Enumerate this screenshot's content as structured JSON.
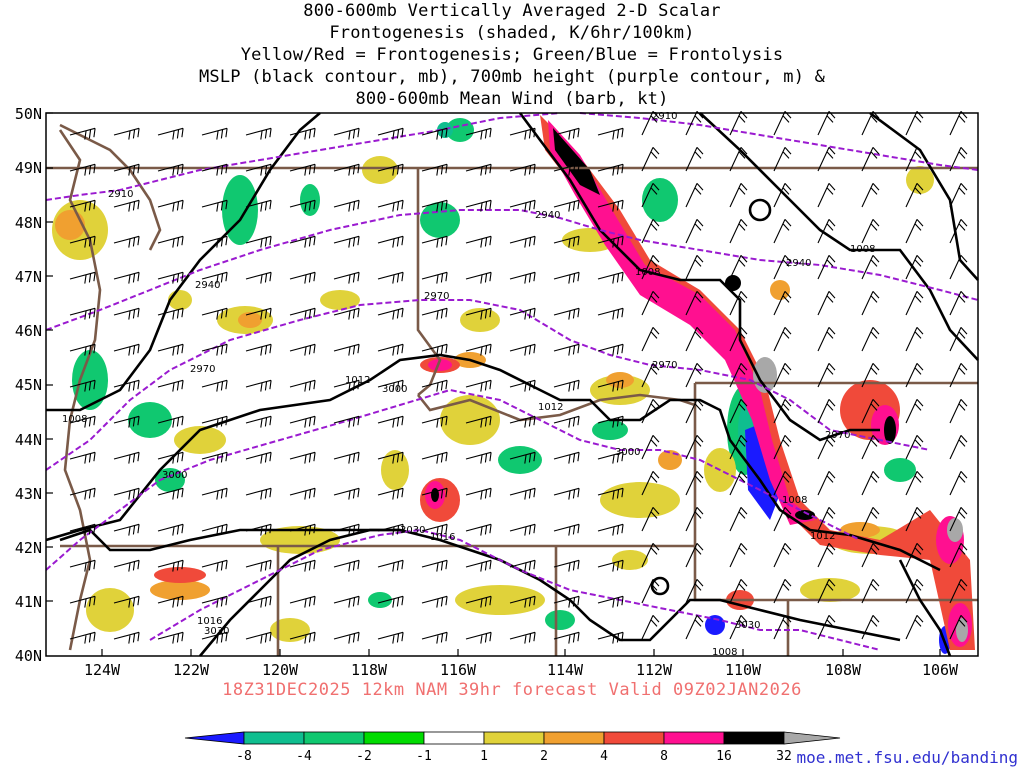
{
  "title": {
    "lines": [
      "800-600mb Vertically Averaged 2-D Scalar",
      "Frontogenesis (shaded, K/6hr/100km)",
      "Yellow/Red = Frontogenesis;  Green/Blue = Frontolysis",
      "MSLP (black contour, mb), 700mb height (purple contour, m) &",
      "800-600mb Mean Wind (barb, kt)"
    ]
  },
  "axes": {
    "lat_labels": [
      "50N",
      "49N",
      "48N",
      "47N",
      "46N",
      "45N",
      "44N",
      "43N",
      "42N",
      "41N",
      "40N"
    ],
    "lon_labels": [
      "124W",
      "122W",
      "120W",
      "118W",
      "116W",
      "114W",
      "112W",
      "110W",
      "108W",
      "106W"
    ]
  },
  "contour_labels": {
    "mslp": [
      "1008",
      "1012",
      "1012",
      "1016",
      "1016",
      "1008",
      "1008",
      "1012",
      "1008",
      "1008"
    ],
    "height": [
      "2910",
      "2910",
      "2940",
      "2940",
      "2940",
      "2970",
      "2970",
      "2970",
      "2970",
      "3000",
      "3000",
      "3000",
      "3030",
      "3030",
      "3030"
    ]
  },
  "forecast": "18Z31DEC2025 12km NAM 39hr forecast Valid 09Z02JAN2026",
  "colorbar": {
    "labels": [
      "-8",
      "-4",
      "-2",
      "-1",
      "1",
      "2",
      "4",
      "8",
      "16",
      "32"
    ],
    "colors": [
      "#1a1aff",
      "#0fbe8f",
      "#10c870",
      "#00dc00",
      "#ffffff",
      "#e0d23a",
      "#f0a030",
      "#f04a3a",
      "#ff1090",
      "#000000",
      "#a8a8a8"
    ]
  },
  "credit": "moe.met.fsu.edu/banding",
  "colors": {
    "mslp": "#000000",
    "height": "#9a1ad0",
    "border": "#7a5a48",
    "forecast_text": "#f07070",
    "credit_text": "#3030d0"
  }
}
